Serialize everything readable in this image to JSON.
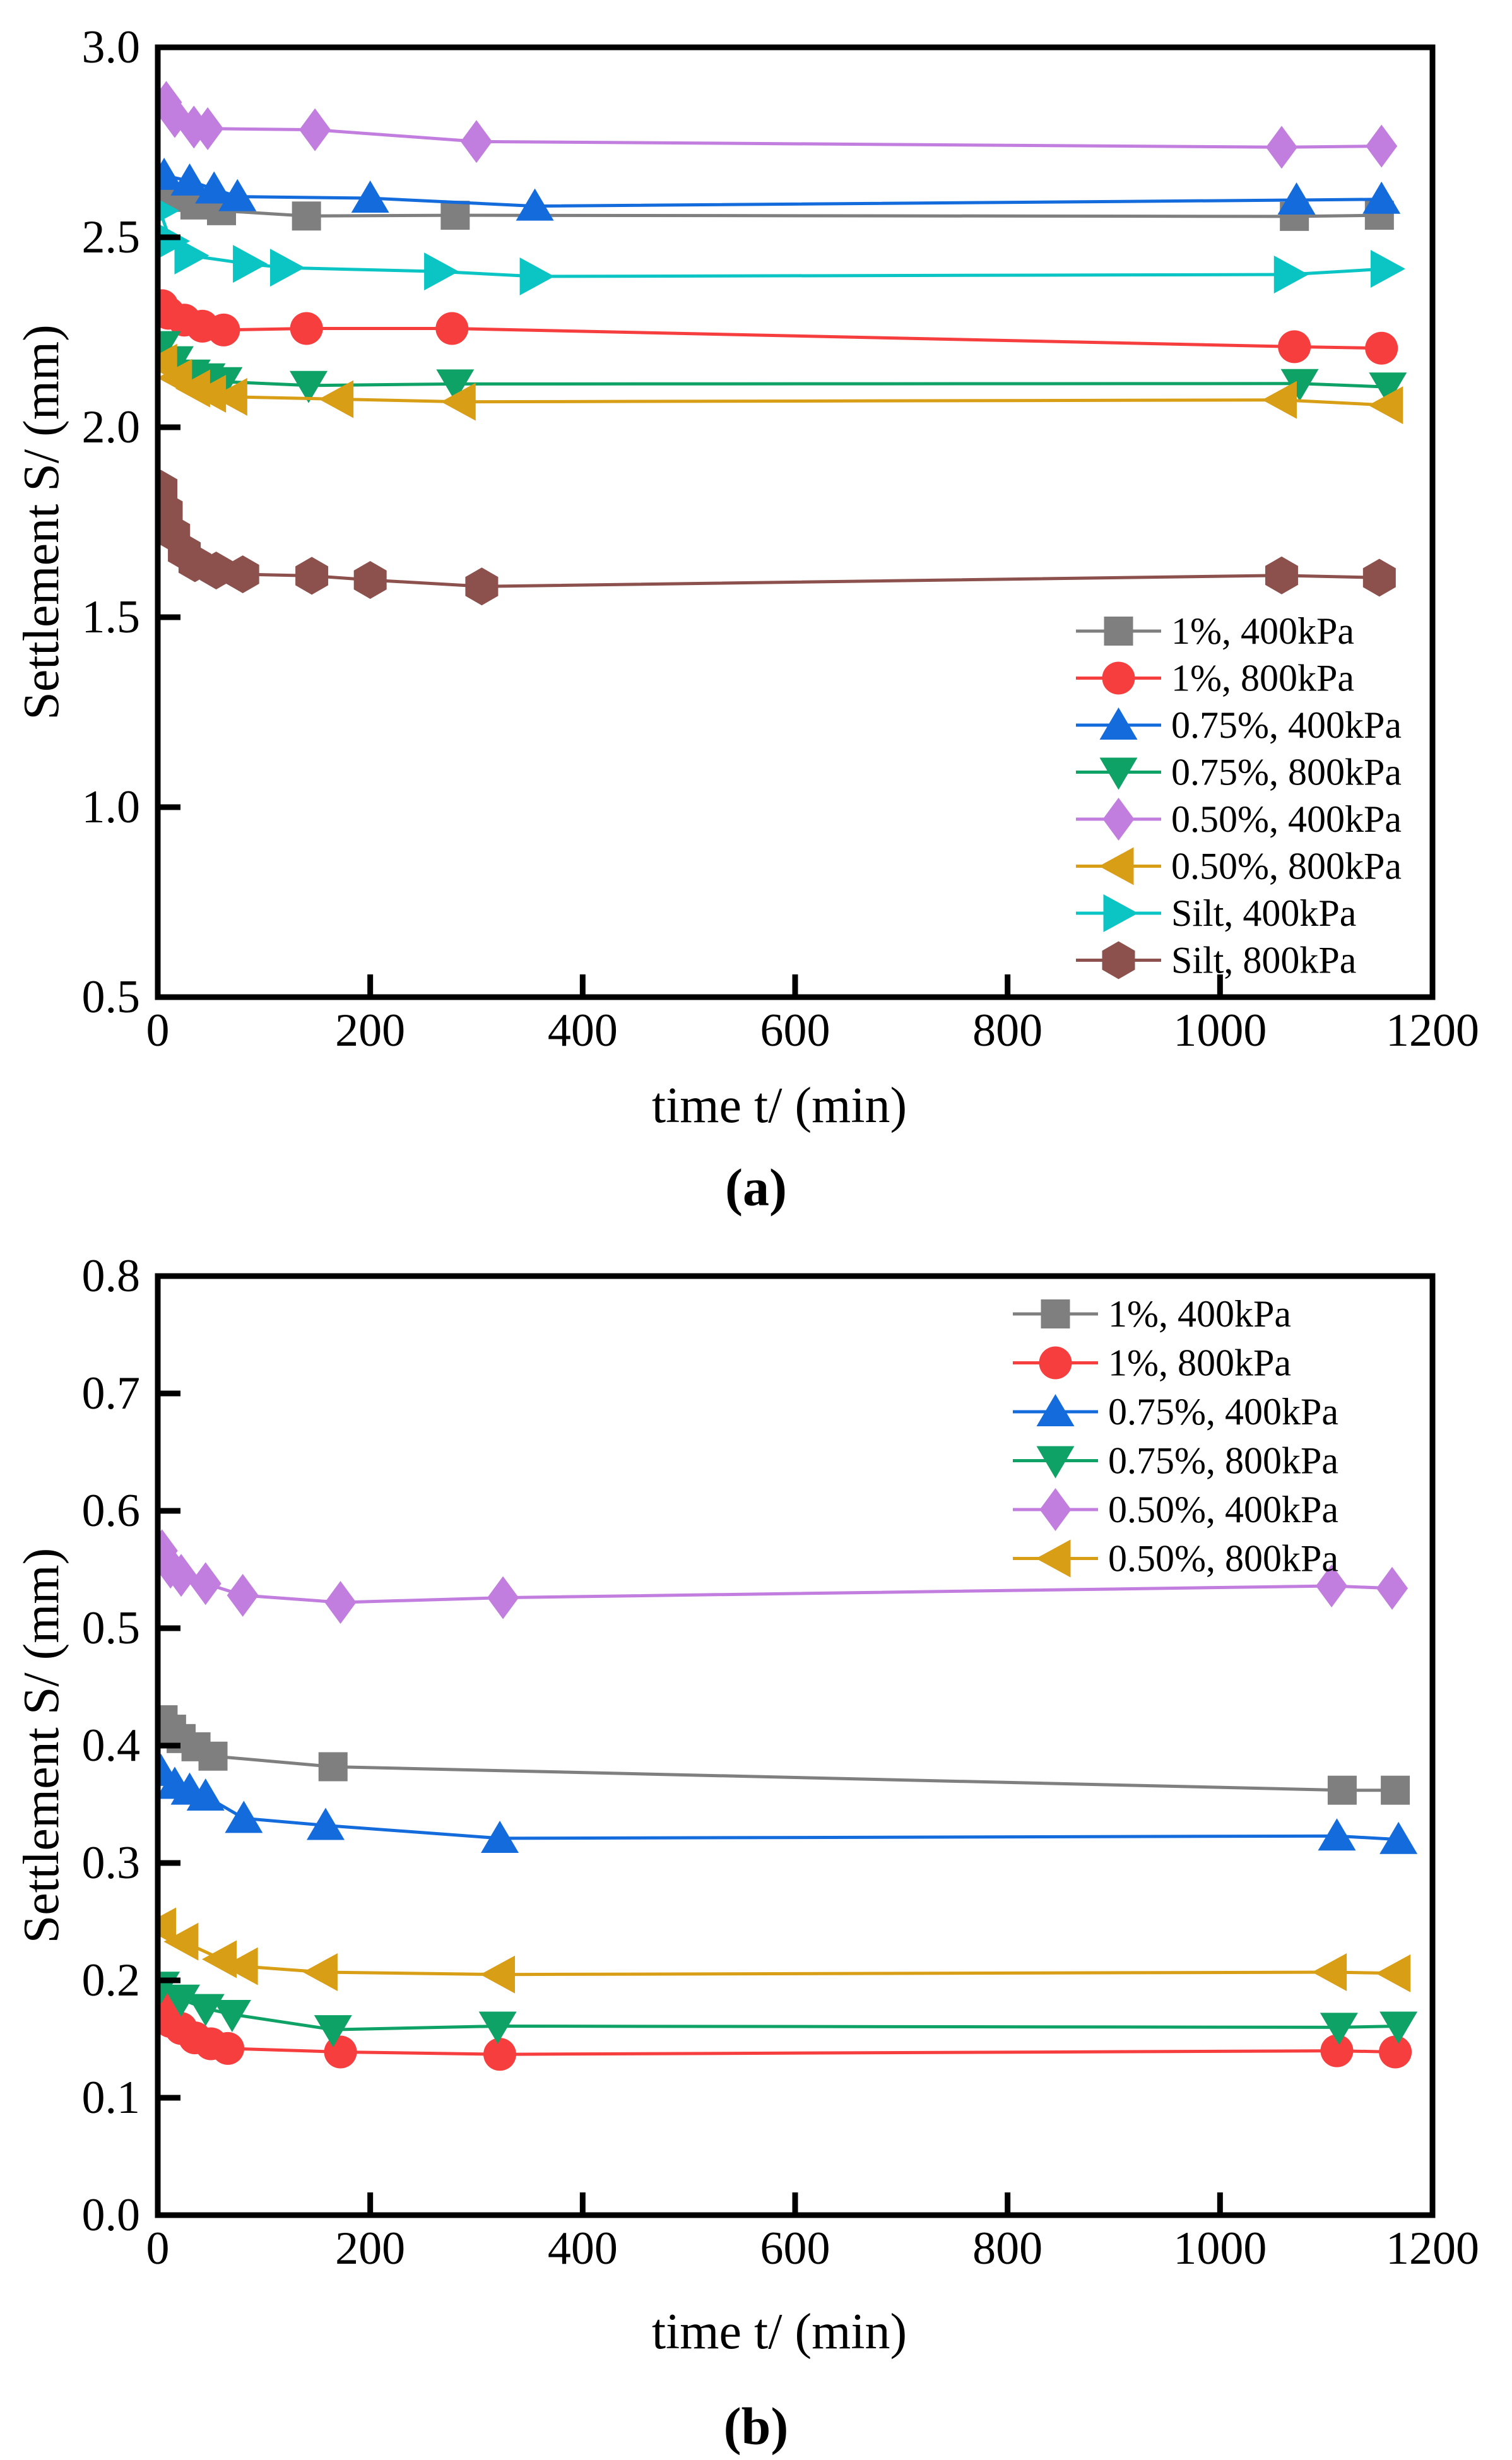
{
  "figure": {
    "background": "#ffffff",
    "caption_a": "(a)",
    "caption_b": "(b)"
  },
  "chart_data": [
    {
      "id": "a",
      "type": "line",
      "caption": "(a)",
      "xlabel": "time t/ (min)",
      "ylabel": "Settlement S/ (mm)",
      "xlim": [
        0,
        1200
      ],
      "ylim": [
        0.5,
        3.0
      ],
      "grid": false,
      "legend_position": "right-middle",
      "xticks": {
        "values": [
          0,
          200,
          400,
          600,
          800,
          1000,
          1200
        ],
        "labels": [
          "0",
          "200",
          "400",
          "600",
          "800",
          "1000",
          "1200"
        ]
      },
      "yticks": {
        "values": [
          0.5,
          1.0,
          1.5,
          2.0,
          2.5,
          3.0
        ],
        "labels": [
          "0.5",
          "1.0",
          "1.5",
          "2.0",
          "2.5",
          "3.0"
        ]
      },
      "series": [
        {
          "name": "1%, 400kPa",
          "color": "#7F7F7F",
          "marker": "square",
          "points": [
            [
              5,
              2.62
            ],
            [
              15,
              2.605
            ],
            [
              35,
              2.585
            ],
            [
              60,
              2.57
            ],
            [
              140,
              2.556
            ],
            [
              280,
              2.558
            ],
            [
              1070,
              2.555
            ],
            [
              1150,
              2.558
            ]
          ]
        },
        {
          "name": "1%, 800kPa",
          "color": "#F73E3E",
          "marker": "circle",
          "points": [
            [
              4,
              2.32
            ],
            [
              10,
              2.3
            ],
            [
              25,
              2.282
            ],
            [
              42,
              2.266
            ],
            [
              62,
              2.256
            ],
            [
              140,
              2.26
            ],
            [
              277,
              2.26
            ],
            [
              1070,
              2.212
            ],
            [
              1152,
              2.208
            ]
          ]
        },
        {
          "name": "0.75%, 400kPa",
          "color": "#146BDC",
          "marker": "triangle-up",
          "points": [
            [
              6,
              2.663
            ],
            [
              30,
              2.648
            ],
            [
              53,
              2.627
            ],
            [
              75,
              2.607
            ],
            [
              200,
              2.603
            ],
            [
              355,
              2.582
            ],
            [
              1072,
              2.598
            ],
            [
              1152,
              2.6
            ]
          ]
        },
        {
          "name": "0.75%, 800kPa",
          "color": "#0FA267",
          "marker": "triangle-down",
          "points": [
            [
              4,
              2.215
            ],
            [
              16,
              2.175
            ],
            [
              32,
              2.14
            ],
            [
              46,
              2.13
            ],
            [
              62,
              2.12
            ],
            [
              142,
              2.11
            ],
            [
              280,
              2.114
            ],
            [
              1075,
              2.115
            ],
            [
              1158,
              2.106
            ]
          ]
        },
        {
          "name": "0.50%, 400kPa",
          "color": "#C17EDF",
          "marker": "diamond",
          "points": [
            [
              8,
              2.855
            ],
            [
              16,
              2.818
            ],
            [
              34,
              2.79
            ],
            [
              47,
              2.786
            ],
            [
              148,
              2.783
            ],
            [
              300,
              2.752
            ],
            [
              1058,
              2.737
            ],
            [
              1152,
              2.74
            ]
          ]
        },
        {
          "name": "0.50%, 800kPa",
          "color": "#D89E15",
          "marker": "triangle-left",
          "points": [
            [
              4,
              2.17
            ],
            [
              18,
              2.13
            ],
            [
              35,
              2.102
            ],
            [
              50,
              2.088
            ],
            [
              70,
              2.08
            ],
            [
              170,
              2.074
            ],
            [
              285,
              2.067
            ],
            [
              1058,
              2.072
            ],
            [
              1158,
              2.058
            ]
          ]
        },
        {
          "name": "Silt, 400kPa",
          "color": "#0BC4C4",
          "marker": "triangle-right",
          "points": [
            [
              2,
              2.57
            ],
            [
              12,
              2.49
            ],
            [
              30,
              2.452
            ],
            [
              85,
              2.43
            ],
            [
              120,
              2.42
            ],
            [
              265,
              2.41
            ],
            [
              355,
              2.397
            ],
            [
              1065,
              2.402
            ],
            [
              1156,
              2.417
            ]
          ]
        },
        {
          "name": "Silt, 800kPa",
          "color": "#8C514D",
          "marker": "hexagon",
          "points": [
            [
              3,
              1.838
            ],
            [
              8,
              1.78
            ],
            [
              15,
              1.72
            ],
            [
              25,
              1.672
            ],
            [
              35,
              1.642
            ],
            [
              55,
              1.623
            ],
            [
              80,
              1.613
            ],
            [
              145,
              1.609
            ],
            [
              200,
              1.598
            ],
            [
              305,
              1.581
            ],
            [
              1058,
              1.61
            ],
            [
              1150,
              1.604
            ]
          ]
        }
      ]
    },
    {
      "id": "b",
      "type": "line",
      "caption": "(b)",
      "xlabel": "time t/ (min)",
      "ylabel": "Settlement S/ (mm)",
      "xlim": [
        0,
        1200
      ],
      "ylim": [
        0.0,
        0.8
      ],
      "grid": false,
      "legend_position": "top-right",
      "xticks": {
        "values": [
          0,
          200,
          400,
          600,
          800,
          1000,
          1200
        ],
        "labels": [
          "0",
          "200",
          "400",
          "600",
          "800",
          "1000",
          "1200"
        ]
      },
      "yticks": {
        "values": [
          0.0,
          0.1,
          0.2,
          0.3,
          0.4,
          0.5,
          0.6,
          0.7,
          0.8
        ],
        "labels": [
          "0.0",
          "0.1",
          "0.2",
          "0.3",
          "0.4",
          "0.5",
          "0.6",
          "0.7",
          "0.8"
        ]
      },
      "series": [
        {
          "name": "1%, 400kPa",
          "color": "#7F7F7F",
          "marker": "square",
          "points": [
            [
              5,
              0.422
            ],
            [
              13,
              0.414
            ],
            [
              22,
              0.406
            ],
            [
              36,
              0.399
            ],
            [
              52,
              0.391
            ],
            [
              165,
              0.382
            ],
            [
              1115,
              0.362
            ],
            [
              1165,
              0.362
            ]
          ]
        },
        {
          "name": "1%, 800kPa",
          "color": "#F73E3E",
          "marker": "circle",
          "points": [
            [
              3,
              0.178
            ],
            [
              12,
              0.165
            ],
            [
              22,
              0.159
            ],
            [
              35,
              0.151
            ],
            [
              50,
              0.146
            ],
            [
              66,
              0.142
            ],
            [
              172,
              0.139
            ],
            [
              322,
              0.137
            ],
            [
              1110,
              0.14
            ],
            [
              1165,
              0.139
            ]
          ]
        },
        {
          "name": "0.75%, 400kPa",
          "color": "#146BDC",
          "marker": "triangle-up",
          "points": [
            [
              3,
              0.378
            ],
            [
              16,
              0.367
            ],
            [
              30,
              0.362
            ],
            [
              45,
              0.357
            ],
            [
              81,
              0.338
            ],
            [
              158,
              0.332
            ],
            [
              322,
              0.321
            ],
            [
              1110,
              0.323
            ],
            [
              1168,
              0.32
            ]
          ]
        },
        {
          "name": "0.75%, 800kPa",
          "color": "#0FA267",
          "marker": "triangle-down",
          "points": [
            [
              3,
              0.195
            ],
            [
              22,
              0.184
            ],
            [
              45,
              0.176
            ],
            [
              70,
              0.171
            ],
            [
              165,
              0.158
            ],
            [
              320,
              0.161
            ],
            [
              1112,
              0.16
            ],
            [
              1168,
              0.161
            ]
          ]
        },
        {
          "name": "0.50%, 400kPa",
          "color": "#C17EDF",
          "marker": "diamond",
          "points": [
            [
              4,
              0.566
            ],
            [
              12,
              0.552
            ],
            [
              22,
              0.545
            ],
            [
              45,
              0.538
            ],
            [
              80,
              0.528
            ],
            [
              172,
              0.522
            ],
            [
              325,
              0.526
            ],
            [
              1105,
              0.536
            ],
            [
              1162,
              0.534
            ]
          ]
        },
        {
          "name": "0.50%, 800kPa",
          "color": "#D89E15",
          "marker": "triangle-left",
          "points": [
            [
              3,
              0.246
            ],
            [
              24,
              0.233
            ],
            [
              60,
              0.218
            ],
            [
              80,
              0.212
            ],
            [
              155,
              0.207
            ],
            [
              322,
              0.205
            ],
            [
              1105,
              0.207
            ],
            [
              1165,
              0.206
            ]
          ]
        }
      ]
    }
  ]
}
